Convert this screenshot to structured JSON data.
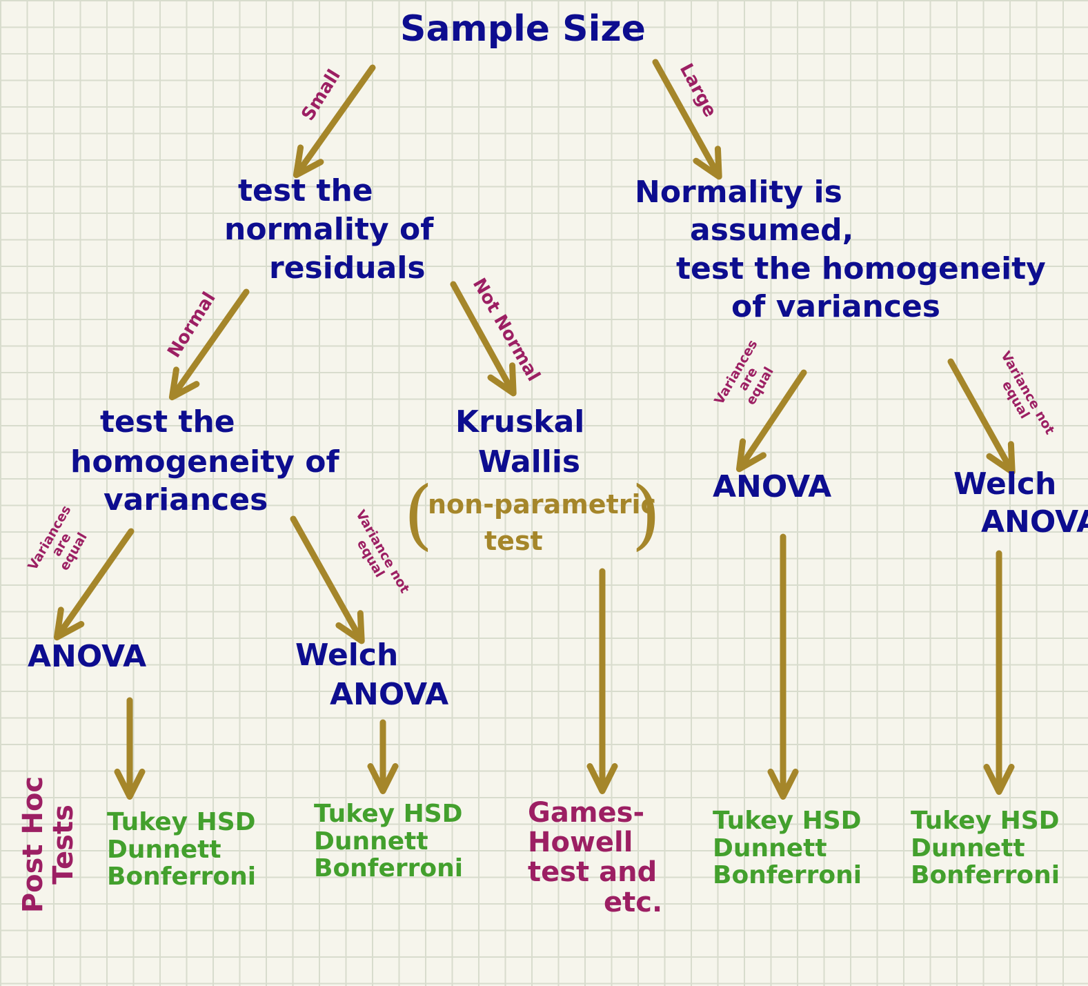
{
  "title": "Sample Size",
  "edges": {
    "small": "Small",
    "large": "Large",
    "normal": "Normal",
    "not_normal": "Not Normal",
    "variances_equal": [
      "Variances",
      "are",
      "equal"
    ],
    "variance_not_equal": [
      "Variance not",
      "equal"
    ]
  },
  "nodes": {
    "test_normality": [
      "test the",
      "normality of",
      "residuals"
    ],
    "normality_assumed": [
      "Normality is",
      "assumed,",
      "test the homogeneity",
      "of variances"
    ],
    "test_homogeneity": [
      "test the",
      "homogeneity of",
      "variances"
    ],
    "kruskal": [
      "Kruskal",
      "Wallis"
    ],
    "nonparam": [
      "non-parametric",
      "test"
    ],
    "anova": "ANOVA",
    "welch": [
      "Welch",
      "ANOVA"
    ]
  },
  "post_hoc": {
    "label": [
      "Post Hoc",
      "Tests"
    ],
    "standard": [
      "Tukey HSD",
      "Dunnett",
      "Bonferroni"
    ],
    "games_howell": [
      "Games-",
      "Howell",
      "test and",
      "etc."
    ]
  },
  "colors": {
    "arrow": "#a5862a",
    "node_text": "#0d0d8f",
    "edge_label": "#9c1f63",
    "post_hoc_text": "#43a02d",
    "grid_background": "#f6f5ec"
  }
}
